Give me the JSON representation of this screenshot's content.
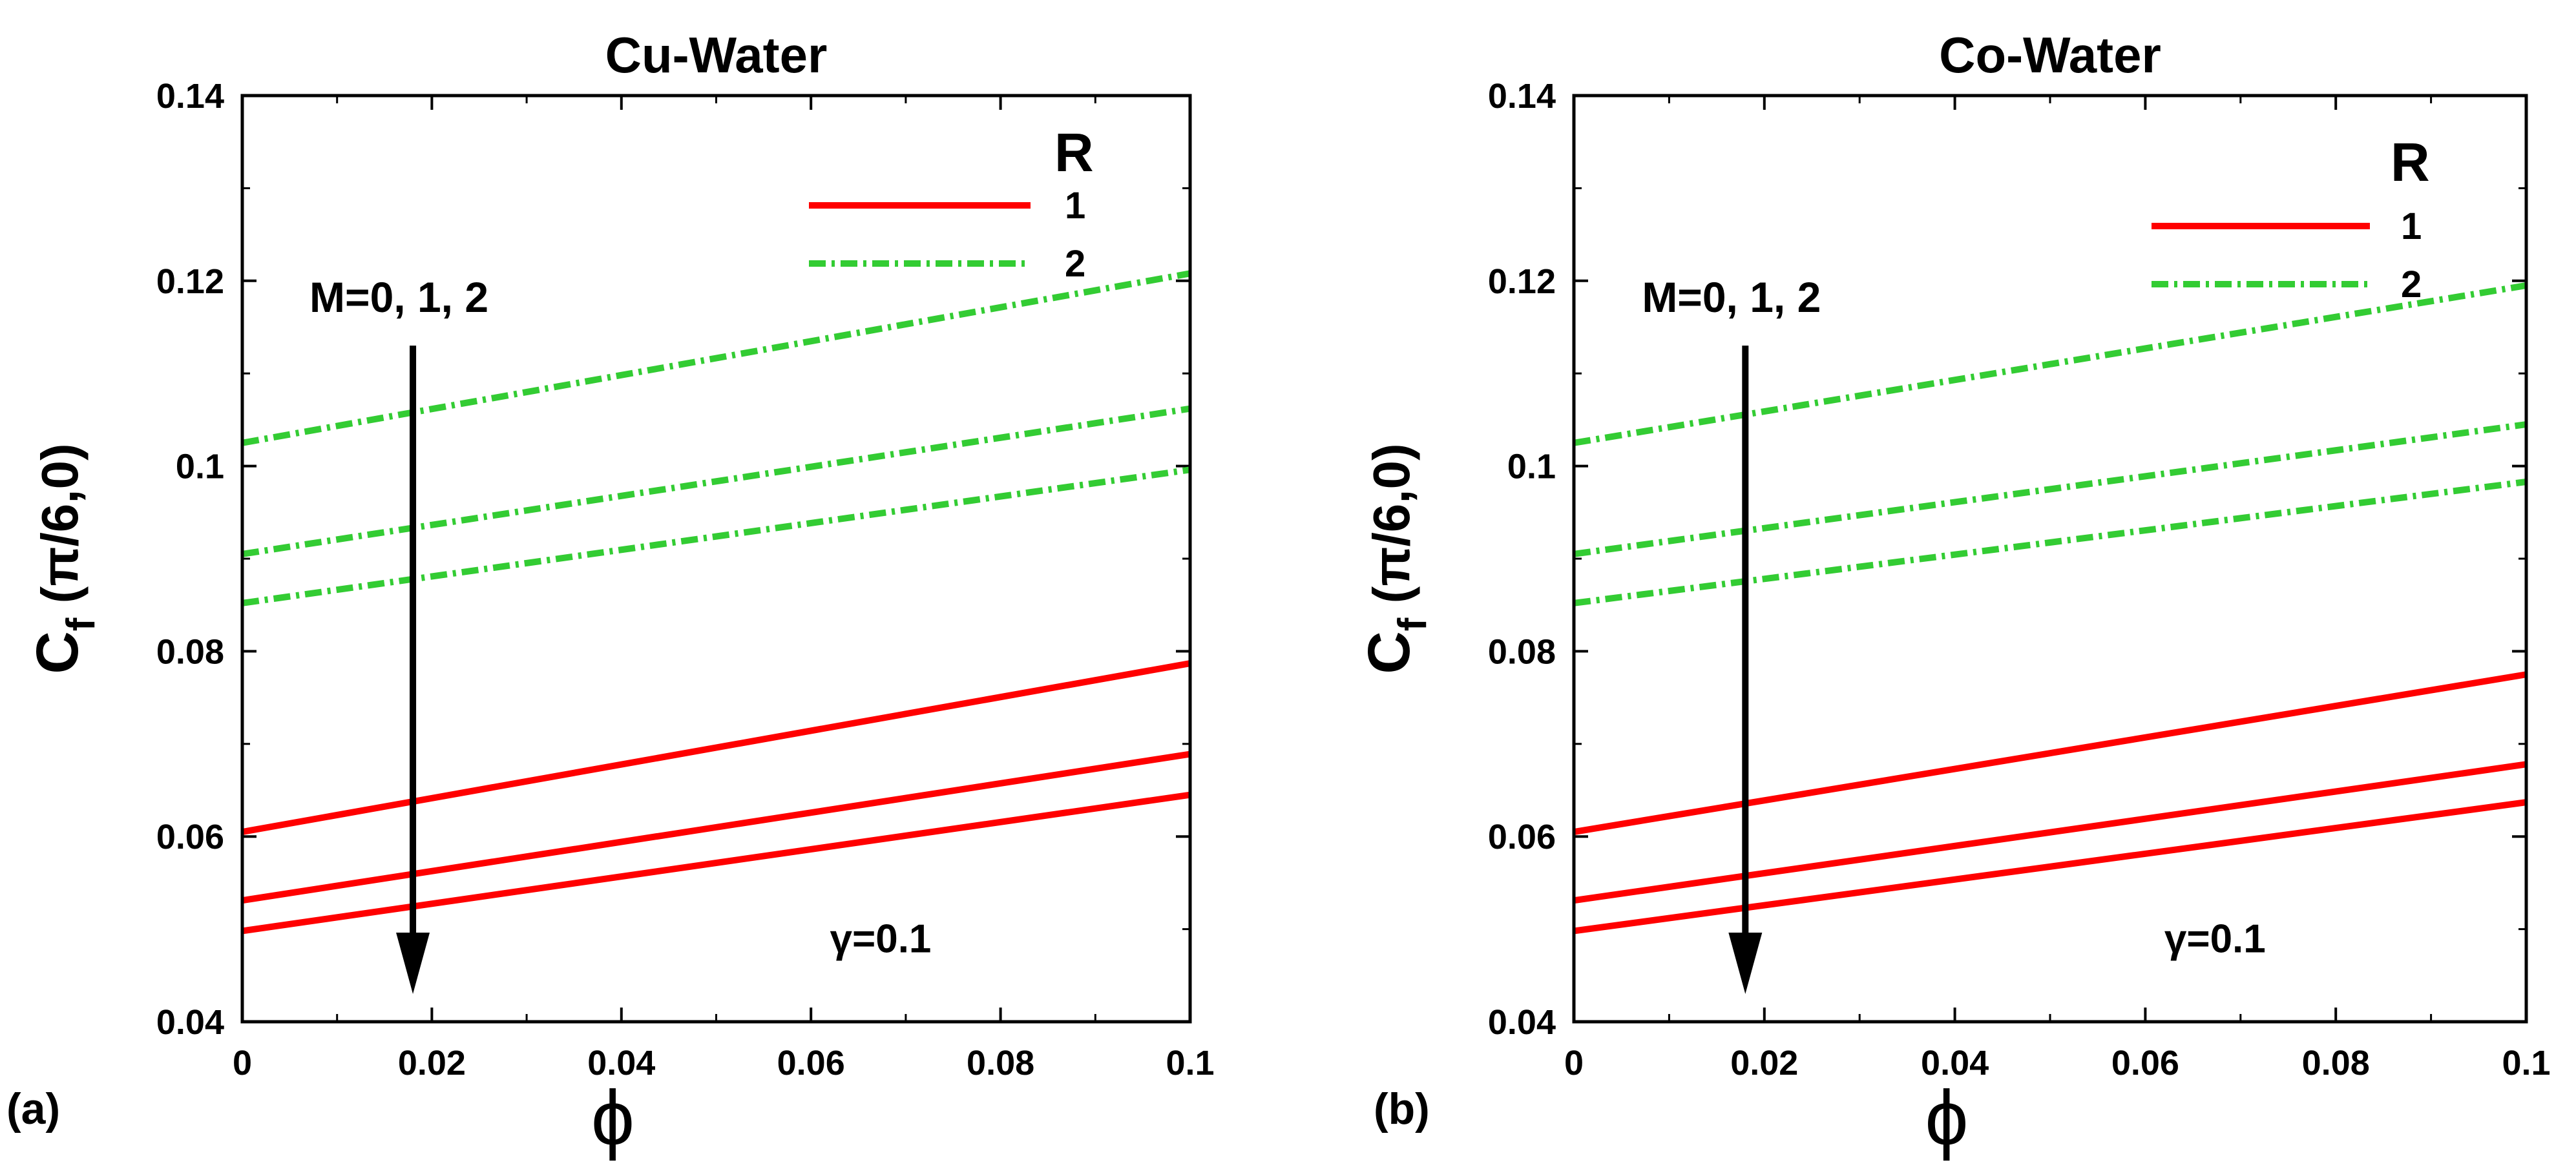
{
  "chart_data": [
    {
      "type": "line",
      "panel_label": "(a)",
      "title": "Cu-Water",
      "xlabel": "ϕ",
      "ylabel_main": "C",
      "ylabel_sub": "f",
      "ylabel_rest": " (π/6,0)",
      "xlim": [
        0,
        0.1
      ],
      "ylim": [
        0.04,
        0.14
      ],
      "x_ticks": [
        0,
        0.02,
        0.04,
        0.06,
        0.08,
        0.1
      ],
      "x_tick_labels": [
        "0",
        "0.02",
        "0.04",
        "0.06",
        "0.08",
        "0.1"
      ],
      "y_ticks": [
        0.04,
        0.06,
        0.08,
        0.1,
        0.12,
        0.14
      ],
      "y_tick_labels": [
        "0.04",
        "0.06",
        "0.08",
        "0.1",
        "0.12",
        "0.14"
      ],
      "legend_title": "R",
      "legend": [
        {
          "label": "1",
          "style": "solid",
          "color": "#ff0000"
        },
        {
          "label": "2",
          "style": "dashdot",
          "color": "#33cc33"
        }
      ],
      "annotation_arrow_text": "M=0, 1, 2",
      "annotation_arrow_x": 0.018,
      "annotation_arrow_y": [
        0.113,
        0.043
      ],
      "annotation_gamma": "γ=0.1",
      "series": [
        {
          "name": "R=2, M=0",
          "R": "2",
          "M": "0",
          "style": "dashdot",
          "color": "#33cc33",
          "x": [
            0,
            0.1
          ],
          "y": [
            0.1025,
            0.1208
          ]
        },
        {
          "name": "R=2, M=1",
          "R": "2",
          "M": "1",
          "style": "dashdot",
          "color": "#33cc33",
          "x": [
            0,
            0.1
          ],
          "y": [
            0.0905,
            0.1062
          ]
        },
        {
          "name": "R=2, M=2",
          "R": "2",
          "M": "2",
          "style": "dashdot",
          "color": "#33cc33",
          "x": [
            0,
            0.1
          ],
          "y": [
            0.0852,
            0.0996
          ]
        },
        {
          "name": "R=1, M=0",
          "R": "1",
          "M": "0",
          "style": "solid",
          "color": "#ff0000",
          "x": [
            0,
            0.1
          ],
          "y": [
            0.0605,
            0.0787
          ]
        },
        {
          "name": "R=1, M=1",
          "R": "1",
          "M": "1",
          "style": "solid",
          "color": "#ff0000",
          "x": [
            0,
            0.1
          ],
          "y": [
            0.0531,
            0.0689
          ]
        },
        {
          "name": "R=1, M=2",
          "R": "1",
          "M": "2",
          "style": "solid",
          "color": "#ff0000",
          "x": [
            0,
            0.1
          ],
          "y": [
            0.0498,
            0.0645
          ]
        }
      ]
    },
    {
      "type": "line",
      "panel_label": "(b)",
      "title": "Co-Water",
      "xlabel": "ϕ",
      "ylabel_main": "C",
      "ylabel_sub": "f",
      "ylabel_rest": " (π/6,0)",
      "xlim": [
        0,
        0.1
      ],
      "ylim": [
        0.04,
        0.14
      ],
      "x_ticks": [
        0,
        0.02,
        0.04,
        0.06,
        0.08,
        0.1
      ],
      "x_tick_labels": [
        "0",
        "0.02",
        "0.04",
        "0.06",
        "0.08",
        "0.1"
      ],
      "y_ticks": [
        0.04,
        0.06,
        0.08,
        0.1,
        0.12,
        0.14
      ],
      "y_tick_labels": [
        "0.04",
        "0.06",
        "0.08",
        "0.1",
        "0.12",
        "0.14"
      ],
      "legend_title": "R",
      "legend": [
        {
          "label": "1",
          "style": "solid",
          "color": "#ff0000"
        },
        {
          "label": "2",
          "style": "dashdot",
          "color": "#33cc33"
        }
      ],
      "annotation_arrow_text": "M=0, 1, 2",
      "annotation_arrow_x": 0.018,
      "annotation_arrow_y": [
        0.113,
        0.043
      ],
      "annotation_gamma": "γ=0.1",
      "series": [
        {
          "name": "R=2, M=0",
          "R": "2",
          "M": "0",
          "style": "dashdot",
          "color": "#33cc33",
          "x": [
            0,
            0.1
          ],
          "y": [
            0.1025,
            0.1195
          ]
        },
        {
          "name": "R=2, M=1",
          "R": "2",
          "M": "1",
          "style": "dashdot",
          "color": "#33cc33",
          "x": [
            0,
            0.1
          ],
          "y": [
            0.0905,
            0.1045
          ]
        },
        {
          "name": "R=2, M=2",
          "R": "2",
          "M": "2",
          "style": "dashdot",
          "color": "#33cc33",
          "x": [
            0,
            0.1
          ],
          "y": [
            0.0852,
            0.0983
          ]
        },
        {
          "name": "R=1, M=0",
          "R": "1",
          "M": "0",
          "style": "solid",
          "color": "#ff0000",
          "x": [
            0,
            0.1
          ],
          "y": [
            0.0605,
            0.0775
          ]
        },
        {
          "name": "R=1, M=1",
          "R": "1",
          "M": "1",
          "style": "solid",
          "color": "#ff0000",
          "x": [
            0,
            0.1
          ],
          "y": [
            0.0531,
            0.0678
          ]
        },
        {
          "name": "R=1, M=2",
          "R": "1",
          "M": "2",
          "style": "solid",
          "color": "#ff0000",
          "x": [
            0,
            0.1
          ],
          "y": [
            0.0498,
            0.0637
          ]
        }
      ]
    }
  ]
}
